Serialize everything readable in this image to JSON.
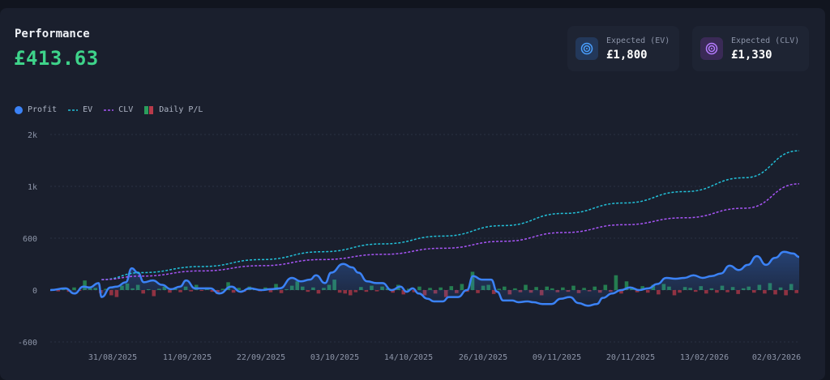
{
  "header": {
    "title": "Performance",
    "profit": "£413.63"
  },
  "stats": [
    {
      "label": "Expected (EV)",
      "value": "£1,800",
      "icon": "target-icon",
      "color": "#3b8ef0"
    },
    {
      "label": "Expected (CLV)",
      "value": "£1,330",
      "icon": "target-icon",
      "color": "#a66cf0"
    }
  ],
  "legend": [
    {
      "label": "Profit",
      "color": "#3b82f6"
    },
    {
      "label": "EV",
      "color": "#22c1d9"
    },
    {
      "label": "CLV",
      "color": "#a855f7"
    },
    {
      "label": "Daily P/L",
      "color": "#2a9d5c",
      "color2": "#b83a4a"
    }
  ],
  "chart_data": {
    "type": "line",
    "y_ticks": [
      "2k",
      "1k",
      "600",
      "0",
      "-600"
    ],
    "y_tick_values": [
      1600,
      1200,
      600,
      0,
      -600
    ],
    "x_tick_labels": [
      "31/08/2025",
      "11/09/2025",
      "22/09/2025",
      "03/10/2025",
      "14/10/2025",
      "26/10/2025",
      "09/11/2025",
      "20/11/2025",
      "13/02/2026",
      "02/03/2026"
    ],
    "n_points": 141,
    "series": [
      {
        "name": "Profit",
        "style": "solid-area",
        "color": "#3b82f6",
        "points": [
          [
            0,
            0
          ],
          [
            5,
            20
          ],
          [
            8,
            -40
          ],
          [
            11,
            40
          ],
          [
            13,
            30
          ],
          [
            16,
            80
          ],
          [
            17,
            -80
          ],
          [
            20,
            30
          ],
          [
            22,
            40
          ],
          [
            25,
            90
          ],
          [
            27,
            250
          ],
          [
            29,
            200
          ],
          [
            31,
            90
          ],
          [
            34,
            110
          ],
          [
            37,
            60
          ],
          [
            40,
            10
          ],
          [
            43,
            40
          ],
          [
            45,
            110
          ],
          [
            48,
            20
          ],
          [
            53,
            20
          ],
          [
            56,
            -40
          ],
          [
            60,
            40
          ],
          [
            63,
            -20
          ],
          [
            66,
            20
          ],
          [
            70,
            0
          ],
          [
            73,
            10
          ],
          [
            76,
            20
          ],
          [
            80,
            140
          ],
          [
            83,
            100
          ],
          [
            86,
            120
          ],
          [
            88,
            170
          ],
          [
            91,
            80
          ],
          [
            93,
            200
          ],
          [
            97,
            300
          ],
          [
            100,
            260
          ],
          [
            102,
            200
          ],
          [
            105,
            100
          ],
          [
            108,
            80
          ],
          [
            110,
            80
          ],
          [
            113,
            0
          ],
          [
            116,
            40
          ],
          [
            118,
            -20
          ],
          [
            120,
            20
          ],
          [
            122,
            -40
          ],
          [
            125,
            -100
          ],
          [
            127,
            -130
          ],
          [
            130,
            -130
          ],
          [
            132,
            -80
          ],
          [
            135,
            -80
          ],
          [
            138,
            0
          ],
          [
            140,
            160
          ],
          [
            143,
            120
          ],
          [
            146,
            120
          ],
          [
            148,
            -20
          ],
          [
            150,
            -120
          ],
          [
            153,
            -120
          ],
          [
            155,
            -140
          ],
          [
            158,
            -130
          ],
          [
            160,
            -140
          ],
          [
            163,
            -160
          ],
          [
            166,
            -160
          ],
          [
            169,
            -100
          ],
          [
            172,
            -80
          ],
          [
            175,
            -150
          ],
          [
            178,
            -180
          ],
          [
            181,
            -160
          ],
          [
            183,
            -90
          ],
          [
            186,
            -40
          ],
          [
            189,
            0
          ],
          [
            192,
            30
          ],
          [
            195,
            0
          ],
          [
            198,
            20
          ],
          [
            201,
            70
          ],
          [
            204,
            140
          ],
          [
            207,
            130
          ],
          [
            210,
            140
          ],
          [
            213,
            170
          ],
          [
            216,
            140
          ],
          [
            219,
            160
          ],
          [
            222,
            190
          ],
          [
            225,
            280
          ],
          [
            228,
            230
          ],
          [
            231,
            290
          ],
          [
            234,
            390
          ],
          [
            237,
            290
          ],
          [
            240,
            370
          ],
          [
            243,
            440
          ],
          [
            246,
            420
          ],
          [
            248,
            380
          ]
        ]
      },
      {
        "name": "EV",
        "style": "dashed",
        "color": "#22c1d9",
        "points": [
          [
            17,
            120
          ],
          [
            30,
            200
          ],
          [
            50,
            270
          ],
          [
            70,
            350
          ],
          [
            90,
            440
          ],
          [
            110,
            530
          ],
          [
            130,
            620
          ],
          [
            150,
            740
          ],
          [
            170,
            880
          ],
          [
            190,
            1000
          ],
          [
            210,
            1130
          ],
          [
            230,
            1290
          ],
          [
            248,
            1600
          ]
        ]
      },
      {
        "name": "CLV",
        "style": "dashed",
        "color": "#a855f7",
        "points": [
          [
            17,
            120
          ],
          [
            30,
            160
          ],
          [
            50,
            220
          ],
          [
            70,
            280
          ],
          [
            90,
            350
          ],
          [
            110,
            410
          ],
          [
            130,
            480
          ],
          [
            150,
            560
          ],
          [
            170,
            660
          ],
          [
            190,
            750
          ],
          [
            210,
            830
          ],
          [
            230,
            940
          ],
          [
            248,
            1220
          ]
        ]
      }
    ],
    "daily_pl": [
      12,
      -15,
      8,
      -20,
      30,
      -10,
      110,
      40,
      25,
      -35,
      15,
      -60,
      -80,
      50,
      75,
      20,
      60,
      -40,
      10,
      -70,
      15,
      40,
      -30,
      25,
      -25,
      40,
      -15,
      60,
      -10,
      30,
      -20,
      -45,
      15,
      90,
      -30,
      25,
      -20,
      40,
      20,
      -15,
      30,
      -25,
      70,
      -35,
      10,
      50,
      100,
      40,
      -20,
      30,
      -40,
      25,
      60,
      120,
      -30,
      -40,
      -60,
      -25,
      35,
      -20,
      50,
      -15,
      40,
      20,
      -30,
      60,
      -50,
      15,
      -25,
      40,
      -60,
      25,
      -40,
      30,
      -80,
      45,
      -35,
      70,
      -20,
      210,
      -35,
      50,
      60,
      -45,
      15,
      40,
      -50,
      20,
      -25,
      60,
      -30,
      35,
      -60,
      40,
      20,
      -25,
      30,
      -20,
      50,
      -35,
      25,
      -15,
      40,
      -30,
      60,
      -20,
      170,
      -40,
      100,
      30,
      -25,
      45,
      -30,
      60,
      -50,
      70,
      40,
      -60,
      -30,
      35,
      25,
      -20,
      45,
      -40,
      20,
      -30,
      50,
      -25,
      35,
      -45,
      20,
      40,
      -30,
      60,
      -40,
      80,
      -50,
      30,
      -60,
      70,
      -35
    ]
  }
}
